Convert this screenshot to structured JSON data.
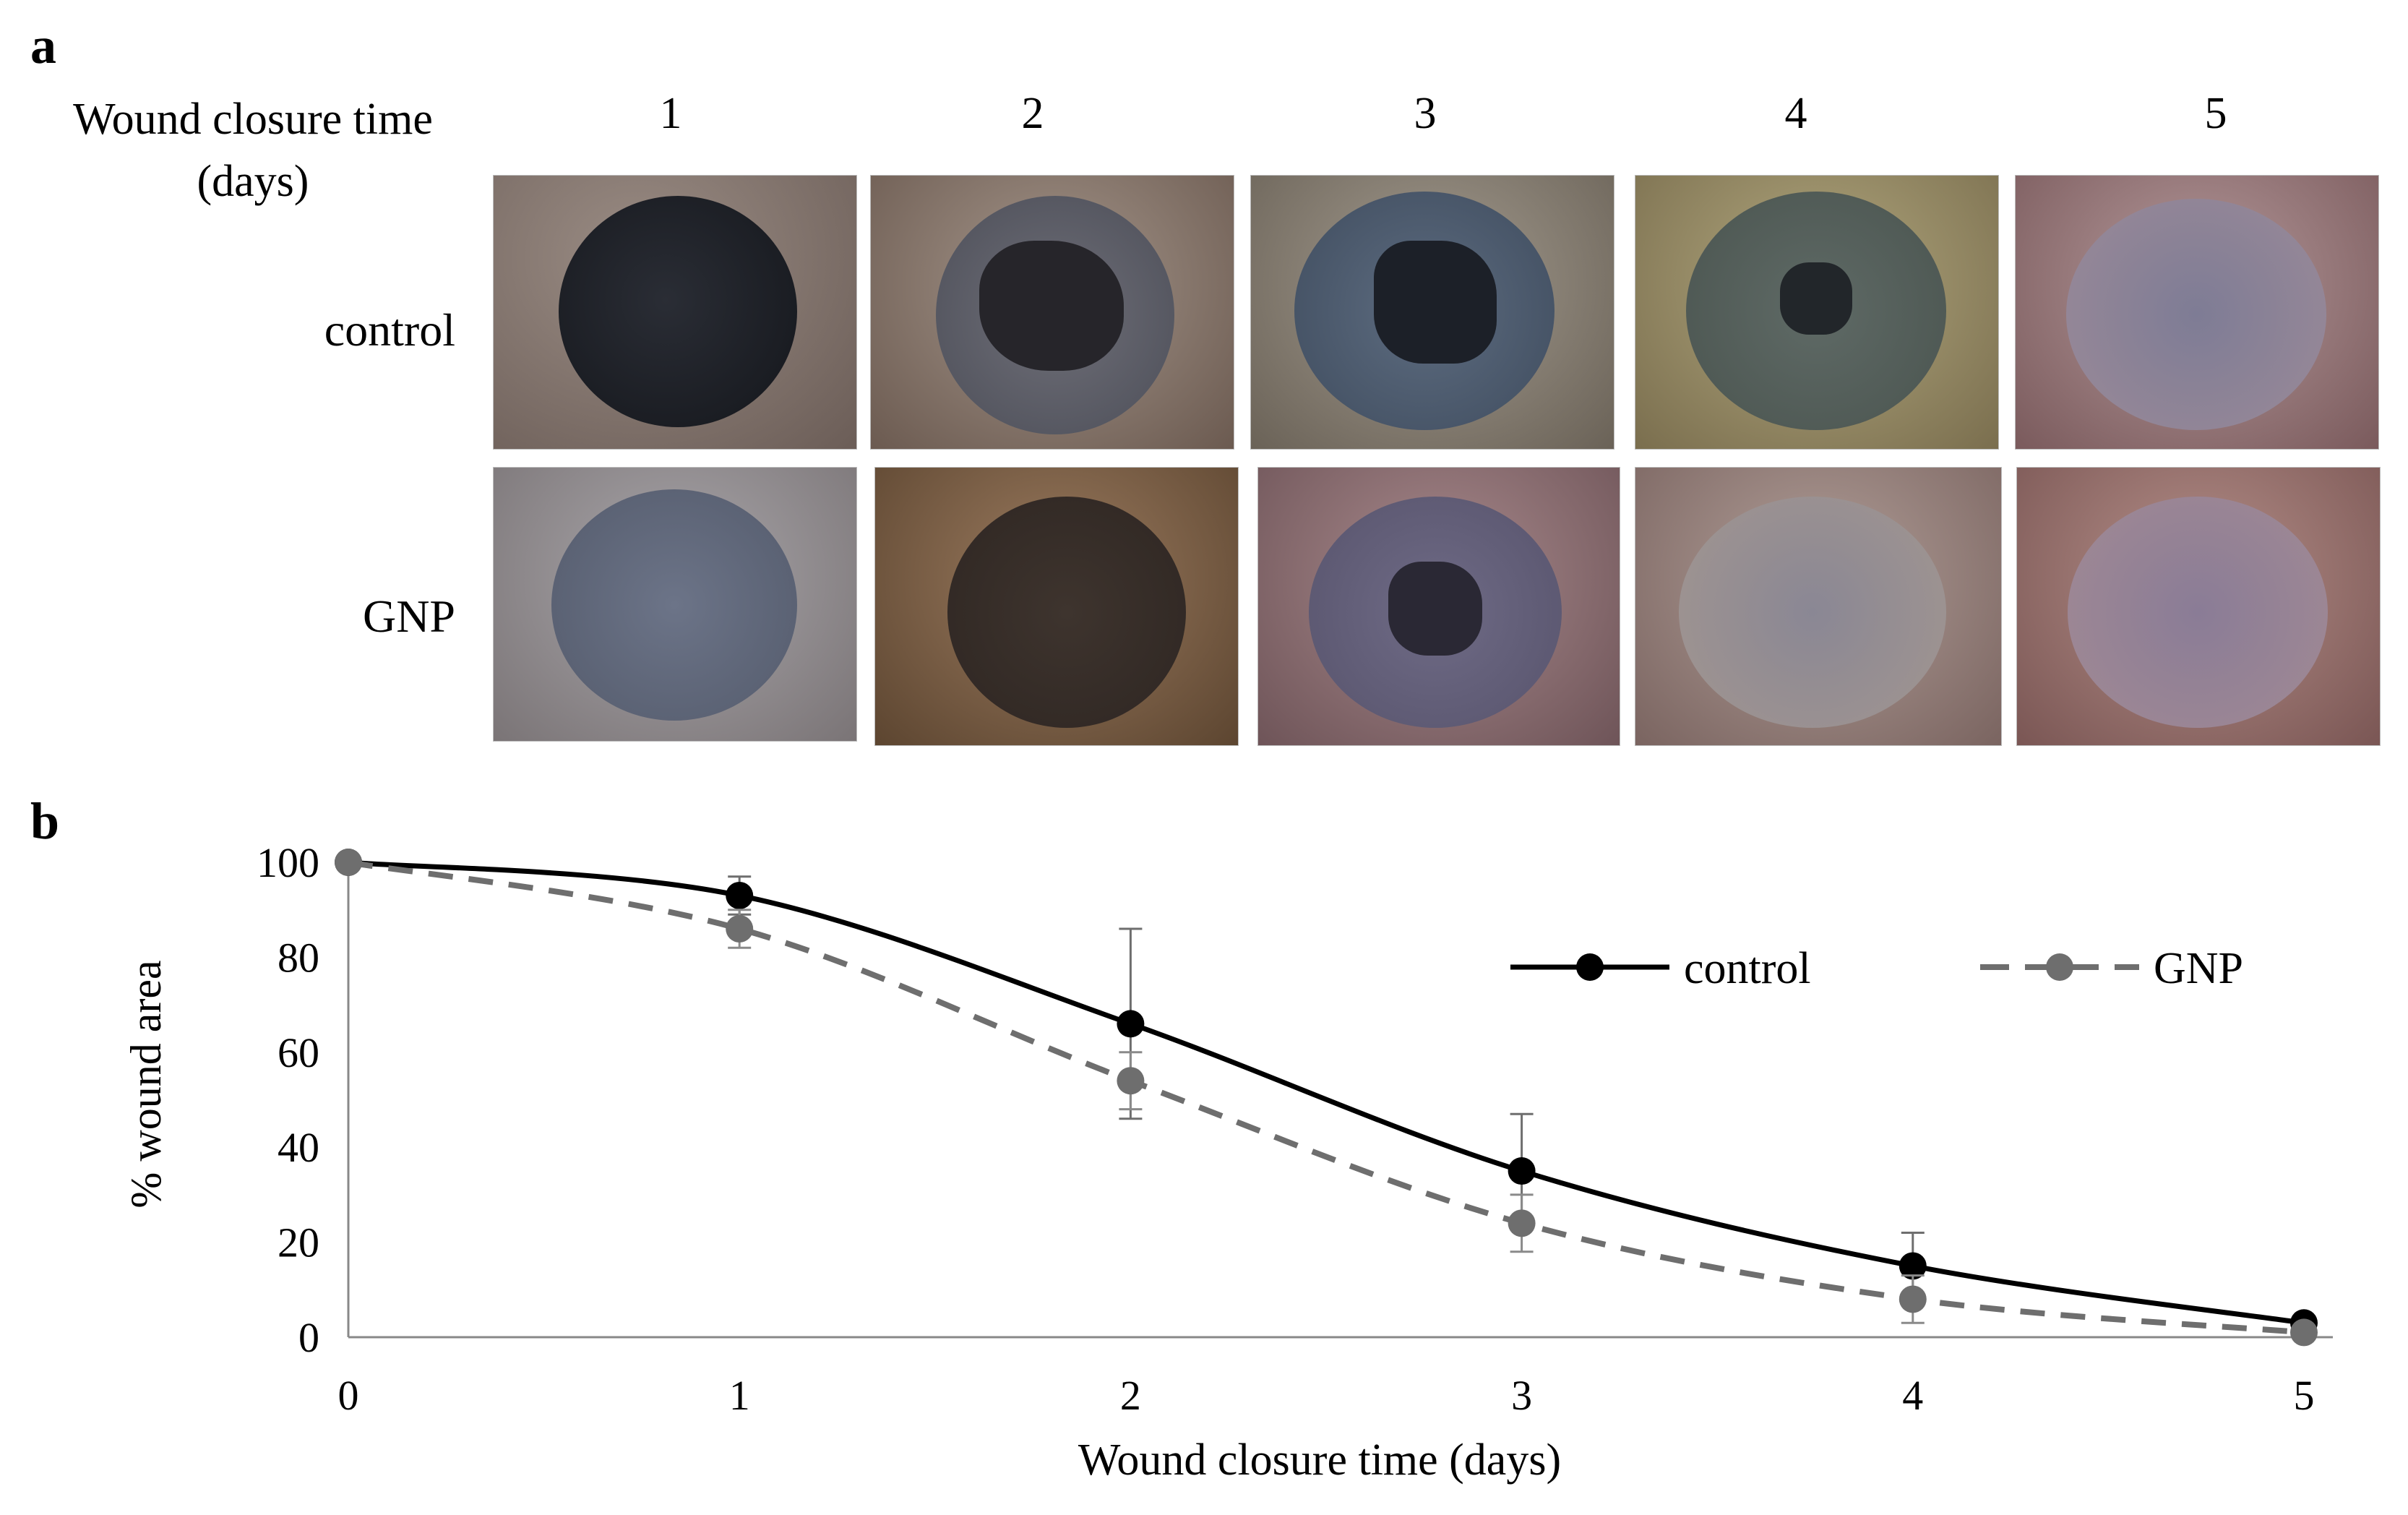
{
  "figure": {
    "panel_a": {
      "letter": "a",
      "time_label": "Wound closure time (days)",
      "days": [
        "1",
        "2",
        "3",
        "4",
        "5"
      ],
      "rows": [
        {
          "label": "control"
        },
        {
          "label": "GNP"
        }
      ]
    },
    "panel_b": {
      "letter": "b"
    }
  },
  "chart_data": {
    "type": "line",
    "title": "",
    "xlabel": "Wound closure time (days)",
    "ylabel": "% wound area",
    "x": [
      0,
      1,
      2,
      3,
      4,
      5
    ],
    "xlim": [
      0,
      5
    ],
    "ylim": [
      0,
      100
    ],
    "xticks": [
      0,
      1,
      2,
      3,
      4,
      5
    ],
    "yticks": [
      0,
      20,
      40,
      60,
      80,
      100
    ],
    "grid": false,
    "legend_position": "top-right",
    "series": [
      {
        "name": "control",
        "values": [
          100,
          93,
          66,
          35,
          15,
          3
        ],
        "error": [
          0,
          4,
          20,
          12,
          7,
          1
        ],
        "color": "#000000",
        "style": "solid"
      },
      {
        "name": "GNP",
        "values": [
          100,
          86,
          54,
          24,
          8,
          1
        ],
        "error": [
          0,
          4,
          6,
          6,
          5,
          1
        ],
        "color": "#6e6e6e",
        "style": "dashed"
      }
    ]
  }
}
